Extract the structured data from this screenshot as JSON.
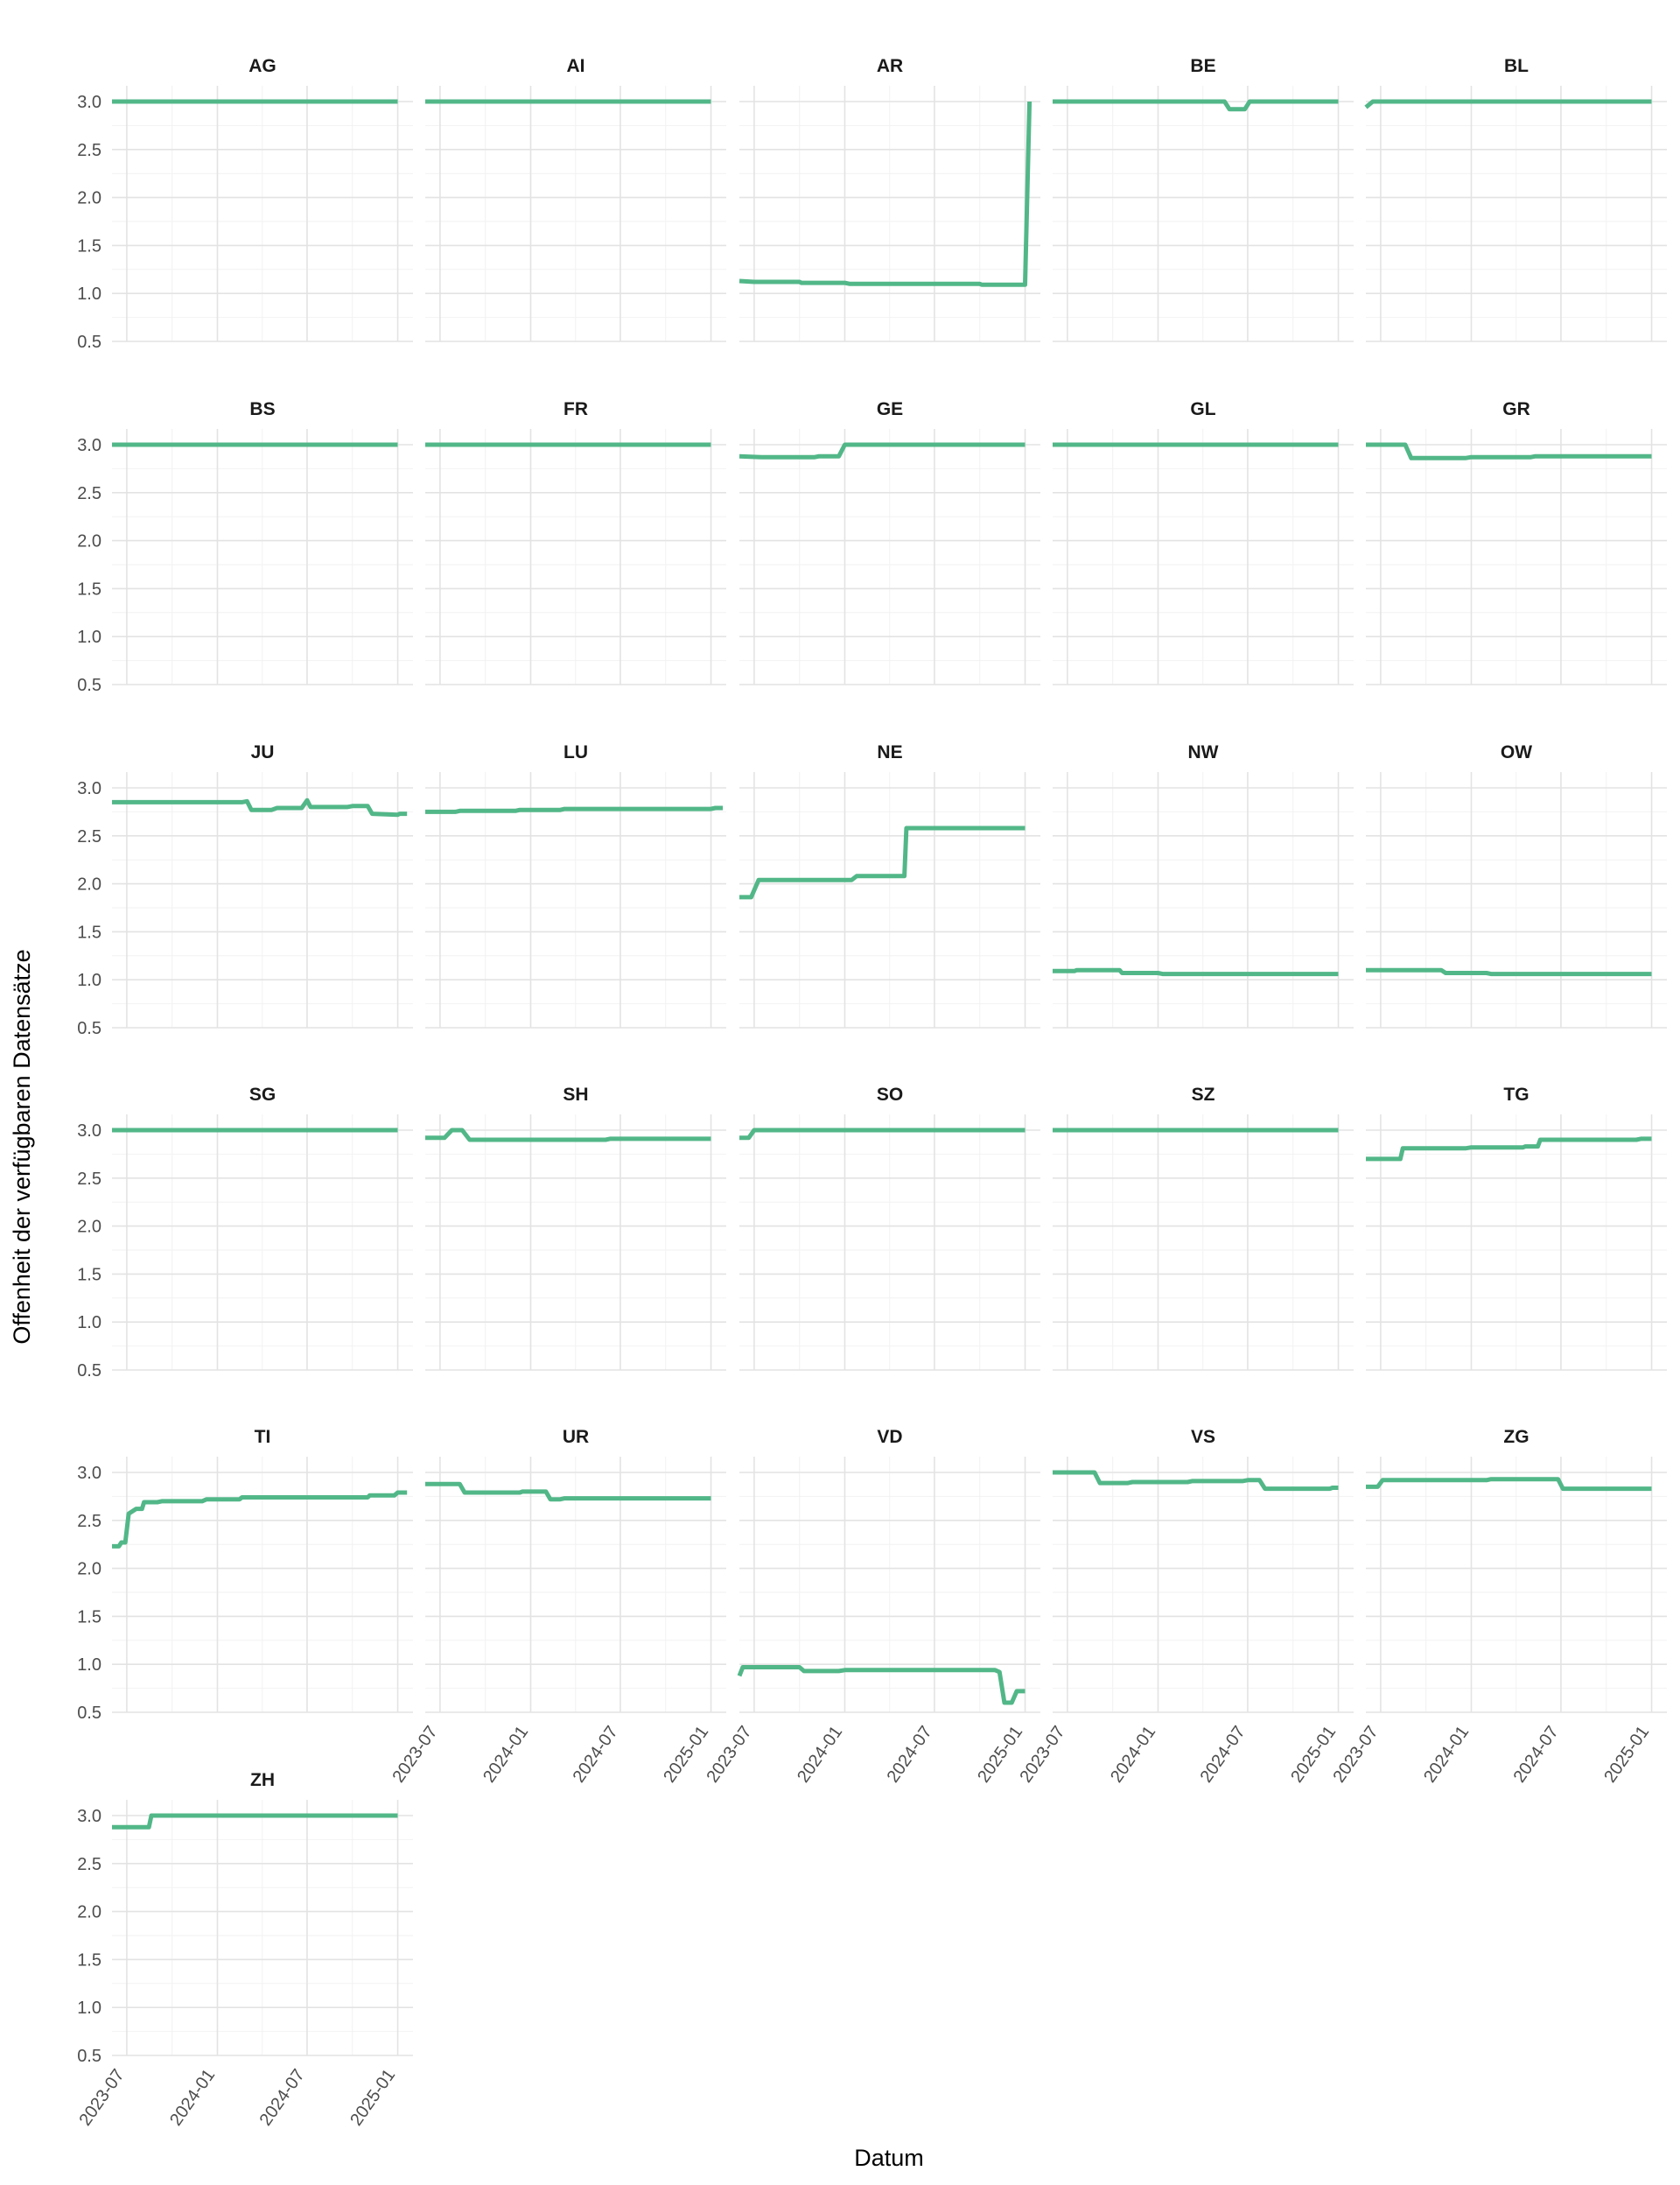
{
  "chart_data": {
    "type": "line",
    "layout": "facet_wrap",
    "xlabel": "Datum",
    "ylabel": "Offenheit der verfügbaren Datensätze",
    "x_ticks": [
      "2023-07",
      "2024-01",
      "2024-07",
      "2025-01"
    ],
    "y_ticks": [
      "0.5",
      "1.0",
      "1.5",
      "2.0",
      "2.5",
      "3.0"
    ],
    "xlim": [
      "2023-06",
      "2025-02"
    ],
    "ylim": [
      0.5,
      3.0
    ],
    "grid": true,
    "line_color": "#52b788",
    "panels": [
      {
        "name": "AG",
        "points": [
          [
            "2023-06-01",
            3.0
          ],
          [
            "2025-01-01",
            3.0
          ]
        ]
      },
      {
        "name": "AI",
        "points": [
          [
            "2023-06-01",
            3.0
          ],
          [
            "2025-01-01",
            3.0
          ]
        ]
      },
      {
        "name": "AR",
        "points": [
          [
            "2023-06-01",
            1.13
          ],
          [
            "2023-07-01",
            1.12
          ],
          [
            "2023-10-01",
            1.12
          ],
          [
            "2023-10-05",
            1.11
          ],
          [
            "2024-01-01",
            1.11
          ],
          [
            "2024-01-10",
            1.1
          ],
          [
            "2024-10-01",
            1.1
          ],
          [
            "2024-10-05",
            1.09
          ],
          [
            "2025-01-01",
            1.09
          ],
          [
            "2025-01-10",
            3.0
          ]
        ]
      },
      {
        "name": "BE",
        "points": [
          [
            "2023-06-01",
            3.0
          ],
          [
            "2024-05-15",
            3.0
          ],
          [
            "2024-05-25",
            2.92
          ],
          [
            "2024-06-25",
            2.92
          ],
          [
            "2024-07-05",
            3.0
          ],
          [
            "2025-01-01",
            3.0
          ]
        ]
      },
      {
        "name": "BL",
        "points": [
          [
            "2023-06-01",
            2.94
          ],
          [
            "2023-06-15",
            3.0
          ],
          [
            "2025-01-01",
            3.0
          ]
        ]
      },
      {
        "name": "BS",
        "points": [
          [
            "2023-06-01",
            3.0
          ],
          [
            "2025-01-01",
            3.0
          ]
        ]
      },
      {
        "name": "FR",
        "points": [
          [
            "2023-06-01",
            3.0
          ],
          [
            "2025-01-01",
            3.0
          ]
        ]
      },
      {
        "name": "GE",
        "points": [
          [
            "2023-06-01",
            2.88
          ],
          [
            "2023-07-15",
            2.87
          ],
          [
            "2023-11-01",
            2.87
          ],
          [
            "2023-11-10",
            2.88
          ],
          [
            "2023-12-20",
            2.88
          ],
          [
            "2024-01-01",
            3.0
          ],
          [
            "2025-01-01",
            3.0
          ]
        ]
      },
      {
        "name": "GL",
        "points": [
          [
            "2023-06-01",
            3.0
          ],
          [
            "2025-01-01",
            3.0
          ]
        ]
      },
      {
        "name": "GR",
        "points": [
          [
            "2023-06-01",
            3.0
          ],
          [
            "2023-08-20",
            3.0
          ],
          [
            "2023-09-01",
            2.86
          ],
          [
            "2023-12-20",
            2.86
          ],
          [
            "2024-01-01",
            2.87
          ],
          [
            "2024-05-01",
            2.87
          ],
          [
            "2024-05-10",
            2.88
          ],
          [
            "2025-01-01",
            2.88
          ]
        ]
      },
      {
        "name": "JU",
        "points": [
          [
            "2023-06-01",
            2.85
          ],
          [
            "2024-02-20",
            2.85
          ],
          [
            "2024-03-01",
            2.86
          ],
          [
            "2024-03-10",
            2.77
          ],
          [
            "2024-04-20",
            2.77
          ],
          [
            "2024-05-01",
            2.79
          ],
          [
            "2024-06-20",
            2.79
          ],
          [
            "2024-07-01",
            2.87
          ],
          [
            "2024-07-08",
            2.8
          ],
          [
            "2024-09-20",
            2.8
          ],
          [
            "2024-10-01",
            2.81
          ],
          [
            "2024-11-01",
            2.81
          ],
          [
            "2024-11-10",
            2.73
          ],
          [
            "2025-01-01",
            2.72
          ],
          [
            "2025-01-05",
            2.73
          ],
          [
            "2025-01-20",
            2.73
          ]
        ]
      },
      {
        "name": "LU",
        "points": [
          [
            "2023-06-01",
            2.75
          ],
          [
            "2023-08-01",
            2.75
          ],
          [
            "2023-08-10",
            2.76
          ],
          [
            "2023-12-01",
            2.76
          ],
          [
            "2023-12-10",
            2.77
          ],
          [
            "2024-03-01",
            2.77
          ],
          [
            "2024-03-10",
            2.78
          ],
          [
            "2025-01-01",
            2.78
          ],
          [
            "2025-01-10",
            2.79
          ],
          [
            "2025-01-25",
            2.79
          ]
        ]
      },
      {
        "name": "NE",
        "points": [
          [
            "2023-06-01",
            1.86
          ],
          [
            "2023-06-25",
            1.86
          ],
          [
            "2023-07-10",
            2.04
          ],
          [
            "2024-01-15",
            2.04
          ],
          [
            "2024-01-25",
            2.08
          ],
          [
            "2024-05-01",
            2.08
          ],
          [
            "2024-05-05",
            2.58
          ],
          [
            "2025-01-01",
            2.58
          ]
        ]
      },
      {
        "name": "NW",
        "points": [
          [
            "2023-06-01",
            1.09
          ],
          [
            "2023-07-15",
            1.09
          ],
          [
            "2023-07-20",
            1.1
          ],
          [
            "2023-10-15",
            1.1
          ],
          [
            "2023-10-20",
            1.07
          ],
          [
            "2024-01-01",
            1.07
          ],
          [
            "2024-01-10",
            1.06
          ],
          [
            "2025-01-01",
            1.06
          ]
        ]
      },
      {
        "name": "OW",
        "points": [
          [
            "2023-06-01",
            1.1
          ],
          [
            "2023-11-01",
            1.1
          ],
          [
            "2023-11-10",
            1.07
          ],
          [
            "2024-02-01",
            1.07
          ],
          [
            "2024-02-10",
            1.06
          ],
          [
            "2025-01-01",
            1.06
          ]
        ]
      },
      {
        "name": "SG",
        "points": [
          [
            "2023-06-01",
            3.0
          ],
          [
            "2025-01-01",
            3.0
          ]
        ]
      },
      {
        "name": "SH",
        "points": [
          [
            "2023-06-01",
            2.92
          ],
          [
            "2023-07-10",
            2.92
          ],
          [
            "2023-07-25",
            3.0
          ],
          [
            "2023-08-15",
            3.0
          ],
          [
            "2023-08-30",
            2.9
          ],
          [
            "2024-06-01",
            2.9
          ],
          [
            "2024-06-10",
            2.91
          ],
          [
            "2025-01-01",
            2.91
          ]
        ]
      },
      {
        "name": "SO",
        "points": [
          [
            "2023-06-01",
            2.92
          ],
          [
            "2023-06-20",
            2.92
          ],
          [
            "2023-07-01",
            3.0
          ],
          [
            "2025-01-01",
            3.0
          ]
        ]
      },
      {
        "name": "SZ",
        "points": [
          [
            "2023-06-01",
            3.0
          ],
          [
            "2025-01-01",
            3.0
          ]
        ]
      },
      {
        "name": "TG",
        "points": [
          [
            "2023-06-01",
            2.7
          ],
          [
            "2023-08-10",
            2.7
          ],
          [
            "2023-08-15",
            2.81
          ],
          [
            "2023-12-20",
            2.81
          ],
          [
            "2024-01-01",
            2.82
          ],
          [
            "2024-04-15",
            2.82
          ],
          [
            "2024-04-20",
            2.83
          ],
          [
            "2024-05-15",
            2.83
          ],
          [
            "2024-05-20",
            2.9
          ],
          [
            "2024-12-01",
            2.9
          ],
          [
            "2024-12-10",
            2.91
          ],
          [
            "2025-01-01",
            2.91
          ]
        ]
      },
      {
        "name": "TI",
        "points": [
          [
            "2023-06-01",
            2.23
          ],
          [
            "2023-06-15",
            2.23
          ],
          [
            "2023-06-20",
            2.27
          ],
          [
            "2023-06-28",
            2.27
          ],
          [
            "2023-07-05",
            2.57
          ],
          [
            "2023-07-20",
            2.62
          ],
          [
            "2023-08-01",
            2.62
          ],
          [
            "2023-08-05",
            2.69
          ],
          [
            "2023-09-01",
            2.69
          ],
          [
            "2023-09-10",
            2.7
          ],
          [
            "2023-12-01",
            2.7
          ],
          [
            "2023-12-10",
            2.72
          ],
          [
            "2024-02-15",
            2.72
          ],
          [
            "2024-02-20",
            2.74
          ],
          [
            "2024-11-01",
            2.74
          ],
          [
            "2024-11-05",
            2.76
          ],
          [
            "2024-12-25",
            2.76
          ],
          [
            "2025-01-01",
            2.79
          ],
          [
            "2025-01-20",
            2.79
          ]
        ]
      },
      {
        "name": "UR",
        "points": [
          [
            "2023-06-01",
            2.88
          ],
          [
            "2023-08-10",
            2.88
          ],
          [
            "2023-08-20",
            2.79
          ],
          [
            "2023-12-10",
            2.79
          ],
          [
            "2023-12-15",
            2.8
          ],
          [
            "2024-02-01",
            2.8
          ],
          [
            "2024-02-10",
            2.72
          ],
          [
            "2024-03-01",
            2.72
          ],
          [
            "2024-03-10",
            2.73
          ],
          [
            "2025-01-01",
            2.73
          ]
        ]
      },
      {
        "name": "VD",
        "points": [
          [
            "2023-06-01",
            0.88
          ],
          [
            "2023-06-08",
            0.97
          ],
          [
            "2023-10-01",
            0.97
          ],
          [
            "2023-10-10",
            0.93
          ],
          [
            "2023-12-20",
            0.93
          ],
          [
            "2024-01-01",
            0.94
          ],
          [
            "2024-11-01",
            0.94
          ],
          [
            "2024-11-10",
            0.92
          ],
          [
            "2024-11-20",
            0.6
          ],
          [
            "2024-12-05",
            0.6
          ],
          [
            "2024-12-15",
            0.72
          ],
          [
            "2025-01-01",
            0.72
          ]
        ]
      },
      {
        "name": "VS",
        "points": [
          [
            "2023-06-01",
            3.0
          ],
          [
            "2023-08-25",
            3.0
          ],
          [
            "2023-09-05",
            2.89
          ],
          [
            "2023-11-01",
            2.89
          ],
          [
            "2023-11-10",
            2.9
          ],
          [
            "2024-03-01",
            2.9
          ],
          [
            "2024-03-10",
            2.91
          ],
          [
            "2024-06-20",
            2.91
          ],
          [
            "2024-07-01",
            2.92
          ],
          [
            "2024-07-25",
            2.92
          ],
          [
            "2024-08-05",
            2.83
          ],
          [
            "2024-12-15",
            2.83
          ],
          [
            "2024-12-20",
            2.84
          ],
          [
            "2025-01-01",
            2.84
          ]
        ]
      },
      {
        "name": "ZG",
        "points": [
          [
            "2023-06-01",
            2.85
          ],
          [
            "2023-06-25",
            2.85
          ],
          [
            "2023-07-05",
            2.92
          ],
          [
            "2024-02-01",
            2.92
          ],
          [
            "2024-02-10",
            2.93
          ],
          [
            "2024-06-25",
            2.93
          ],
          [
            "2024-07-05",
            2.83
          ],
          [
            "2025-01-01",
            2.83
          ]
        ]
      },
      {
        "name": "ZH",
        "points": [
          [
            "2023-06-01",
            2.88
          ],
          [
            "2023-08-15",
            2.88
          ],
          [
            "2023-08-20",
            3.0
          ],
          [
            "2025-01-01",
            3.0
          ]
        ]
      }
    ]
  }
}
